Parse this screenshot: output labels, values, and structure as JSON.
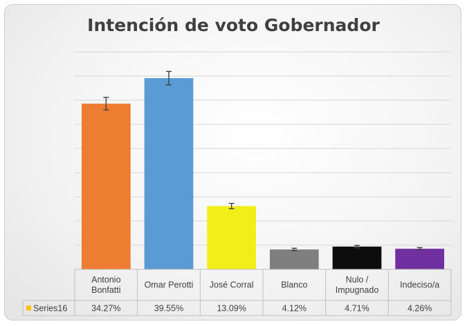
{
  "chart_data": {
    "type": "bar",
    "title": "Intención de voto Gobernador",
    "categories": [
      [
        "Antonio",
        "Bonfatti"
      ],
      [
        "Omar Perotti"
      ],
      [
        "José Corral"
      ],
      [
        "Blanco"
      ],
      [
        "Nulo /",
        "Impugnado"
      ],
      [
        "Indeciso/a"
      ]
    ],
    "series": [
      {
        "name": "Series16",
        "values": [
          34.27,
          39.55,
          13.09,
          4.12,
          4.71,
          4.26
        ],
        "value_labels": [
          "34.27%",
          "39.55%",
          "13.09%",
          "4.12%",
          "4.71%",
          "4.26%"
        ],
        "error": [
          1.3,
          1.4,
          0.55,
          0.25,
          0.25,
          0.25
        ],
        "colors": [
          "#ED7D31",
          "#5B9BD5",
          "#F2EE1A",
          "#7F7F7F",
          "#0D0D0D",
          "#7030A0"
        ]
      }
    ],
    "ylim": [
      0,
      45
    ],
    "grid": true,
    "legend": "data-table",
    "legend_key_color": "#FFC000"
  }
}
